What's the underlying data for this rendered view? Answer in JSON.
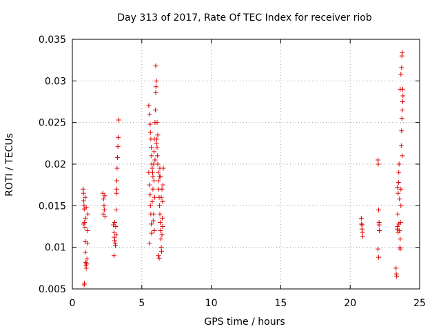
{
  "chart_data": {
    "type": "scatter",
    "title": "Day 313 of 2017, Rate Of TEC Index for receiver riob",
    "xlabel": "GPS time / hours",
    "ylabel": "ROTI / TECUs",
    "xlim": [
      0,
      25
    ],
    "ylim": [
      0.005,
      0.035
    ],
    "xticks": [
      0,
      5,
      10,
      15,
      20,
      25
    ],
    "xtick_labels": [
      "0",
      "5",
      "10",
      "15",
      "20",
      "25"
    ],
    "yticks": [
      0.005,
      0.01,
      0.015,
      0.02,
      0.025,
      0.03,
      0.035
    ],
    "ytick_labels": [
      "0.005",
      "0.01",
      "0.015",
      "0.02",
      "0.025",
      "0.03",
      "0.035"
    ],
    "grid": true,
    "marker": "+",
    "marker_color": "#e00000",
    "series": [
      {
        "name": "riob",
        "points": [
          [
            0.78,
            0.017
          ],
          [
            0.8,
            0.0165
          ],
          [
            0.82,
            0.0156
          ],
          [
            0.84,
            0.015
          ],
          [
            0.86,
            0.0146
          ],
          [
            0.88,
            0.013
          ],
          [
            0.9,
            0.0124
          ],
          [
            0.92,
            0.0107
          ],
          [
            0.94,
            0.0094
          ],
          [
            0.96,
            0.0082
          ],
          [
            0.98,
            0.0078
          ],
          [
            1.0,
            0.0075
          ],
          [
            0.85,
            0.0055
          ],
          [
            0.87,
            0.0057
          ],
          [
            1.02,
            0.008
          ],
          [
            1.05,
            0.0086
          ],
          [
            1.08,
            0.0105
          ],
          [
            1.1,
            0.012
          ],
          [
            1.12,
            0.014
          ],
          [
            0.95,
            0.0135
          ],
          [
            0.8,
            0.0128
          ],
          [
            1.0,
            0.0148
          ],
          [
            0.92,
            0.016
          ],
          [
            2.2,
            0.0165
          ],
          [
            2.25,
            0.0158
          ],
          [
            2.28,
            0.015
          ],
          [
            2.3,
            0.0145
          ],
          [
            2.22,
            0.014
          ],
          [
            2.33,
            0.0162
          ],
          [
            2.35,
            0.0137
          ],
          [
            2.95,
            0.0127
          ],
          [
            3.0,
            0.0118
          ],
          [
            3.02,
            0.0112
          ],
          [
            3.05,
            0.0108
          ],
          [
            3.08,
            0.0105
          ],
          [
            3.1,
            0.0102
          ],
          [
            3.0,
            0.009
          ],
          [
            3.12,
            0.0125
          ],
          [
            3.15,
            0.0145
          ],
          [
            3.18,
            0.0165
          ],
          [
            3.2,
            0.018
          ],
          [
            3.22,
            0.0195
          ],
          [
            3.25,
            0.0208
          ],
          [
            3.28,
            0.0221
          ],
          [
            3.3,
            0.0232
          ],
          [
            3.33,
            0.0253
          ],
          [
            3.2,
            0.017
          ],
          [
            3.05,
            0.013
          ],
          [
            3.15,
            0.0115
          ],
          [
            5.5,
            0.027
          ],
          [
            5.55,
            0.026
          ],
          [
            5.6,
            0.0248
          ],
          [
            5.62,
            0.0238
          ],
          [
            5.65,
            0.023
          ],
          [
            5.68,
            0.022
          ],
          [
            5.7,
            0.021
          ],
          [
            5.72,
            0.02
          ],
          [
            5.75,
            0.0195
          ],
          [
            5.78,
            0.019
          ],
          [
            5.8,
            0.0185
          ],
          [
            5.5,
            0.019
          ],
          [
            5.55,
            0.0175
          ],
          [
            5.6,
            0.0163
          ],
          [
            5.62,
            0.015
          ],
          [
            5.65,
            0.014
          ],
          [
            5.68,
            0.0128
          ],
          [
            5.7,
            0.0117
          ],
          [
            5.55,
            0.0105
          ],
          [
            5.75,
            0.0155
          ],
          [
            5.8,
            0.017
          ],
          [
            5.85,
            0.02
          ],
          [
            5.88,
            0.0215
          ],
          [
            5.9,
            0.023
          ],
          [
            5.95,
            0.025
          ],
          [
            5.98,
            0.0265
          ],
          [
            6.0,
            0.0286
          ],
          [
            6.02,
            0.0293
          ],
          [
            6.05,
            0.03
          ],
          [
            6.0,
            0.0318
          ],
          [
            6.08,
            0.023
          ],
          [
            6.1,
            0.022
          ],
          [
            6.12,
            0.021
          ],
          [
            6.15,
            0.02
          ],
          [
            6.18,
            0.019
          ],
          [
            6.2,
            0.018
          ],
          [
            6.22,
            0.017
          ],
          [
            6.25,
            0.016
          ],
          [
            6.28,
            0.015
          ],
          [
            6.3,
            0.014
          ],
          [
            6.32,
            0.013
          ],
          [
            6.35,
            0.012
          ],
          [
            6.38,
            0.011
          ],
          [
            6.4,
            0.01
          ],
          [
            6.2,
            0.009
          ],
          [
            6.25,
            0.0087
          ],
          [
            6.42,
            0.0095
          ],
          [
            6.45,
            0.0115
          ],
          [
            6.48,
            0.0135
          ],
          [
            6.5,
            0.0155
          ],
          [
            6.52,
            0.0175
          ],
          [
            6.55,
            0.0195
          ],
          [
            6.35,
            0.0185
          ],
          [
            6.15,
            0.0235
          ],
          [
            6.1,
            0.025
          ],
          [
            6.05,
            0.0225
          ],
          [
            5.95,
            0.0205
          ],
          [
            6.3,
            0.0195
          ],
          [
            6.45,
            0.017
          ],
          [
            6.4,
            0.016
          ],
          [
            6.28,
            0.0185
          ],
          [
            5.88,
            0.018
          ],
          [
            5.92,
            0.016
          ],
          [
            5.85,
            0.014
          ],
          [
            6.5,
            0.0125
          ],
          [
            5.9,
            0.012
          ],
          [
            5.82,
            0.0132
          ],
          [
            20.8,
            0.0135
          ],
          [
            20.82,
            0.0128
          ],
          [
            20.85,
            0.0122
          ],
          [
            20.88,
            0.0118
          ],
          [
            20.9,
            0.0113
          ],
          [
            20.85,
            0.0127
          ],
          [
            22.0,
            0.0205
          ],
          [
            22.02,
            0.02
          ],
          [
            22.05,
            0.0145
          ],
          [
            22.08,
            0.013
          ],
          [
            22.1,
            0.012
          ],
          [
            22.0,
            0.0098
          ],
          [
            22.05,
            0.0088
          ],
          [
            22.08,
            0.0127
          ],
          [
            23.3,
            0.0075
          ],
          [
            23.32,
            0.0068
          ],
          [
            23.35,
            0.0065
          ],
          [
            23.38,
            0.0122
          ],
          [
            23.4,
            0.0125
          ],
          [
            23.42,
            0.014
          ],
          [
            23.45,
            0.0165
          ],
          [
            23.48,
            0.0178
          ],
          [
            23.5,
            0.019
          ],
          [
            23.52,
            0.02
          ],
          [
            23.55,
            0.012
          ],
          [
            23.58,
            0.01
          ],
          [
            23.6,
            0.011
          ],
          [
            23.62,
            0.013
          ],
          [
            23.65,
            0.015
          ],
          [
            23.68,
            0.0222
          ],
          [
            23.7,
            0.024
          ],
          [
            23.72,
            0.0255
          ],
          [
            23.75,
            0.0265
          ],
          [
            23.78,
            0.0275
          ],
          [
            23.6,
            0.029
          ],
          [
            23.65,
            0.0308
          ],
          [
            23.7,
            0.0316
          ],
          [
            23.72,
            0.033
          ],
          [
            23.75,
            0.0334
          ],
          [
            23.78,
            0.029
          ],
          [
            23.8,
            0.0282
          ],
          [
            23.75,
            0.021
          ],
          [
            23.5,
            0.0128
          ],
          [
            23.45,
            0.0118
          ],
          [
            23.55,
            0.0158
          ],
          [
            23.65,
            0.017
          ],
          [
            23.6,
            0.0098
          ],
          [
            23.4,
            0.0172
          ]
        ]
      }
    ]
  }
}
